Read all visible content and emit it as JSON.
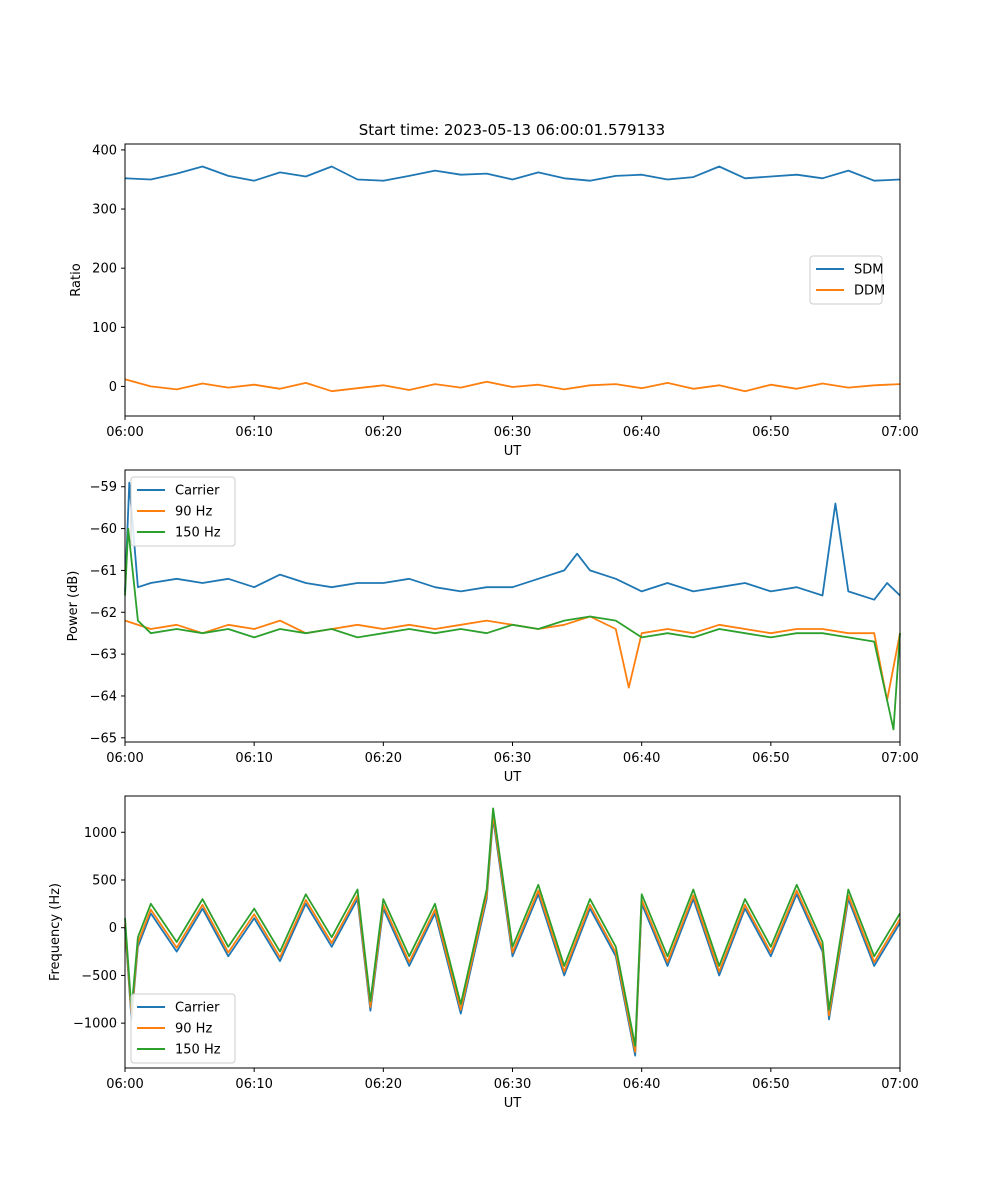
{
  "figure": {
    "title": "Start time: 2023-05-13 06:00:01.579133"
  },
  "chart_data": [
    {
      "type": "line",
      "xlabel": "UT",
      "ylabel": "Ratio",
      "xlim": [
        "06:00",
        "07:00"
      ],
      "ylim": [
        -50,
        410
      ],
      "xticks": [
        "06:00",
        "06:10",
        "06:20",
        "06:30",
        "06:40",
        "06:50",
        "07:00"
      ],
      "yticks": [
        0,
        100,
        200,
        300,
        400
      ],
      "legend_position": "center-right",
      "series": [
        {
          "name": "SDM",
          "color": "#1f77b4",
          "x": [
            "06:00",
            "06:02",
            "06:04",
            "06:06",
            "06:08",
            "06:10",
            "06:12",
            "06:14",
            "06:16",
            "06:18",
            "06:20",
            "06:22",
            "06:24",
            "06:26",
            "06:28",
            "06:30",
            "06:32",
            "06:34",
            "06:36",
            "06:38",
            "06:40",
            "06:42",
            "06:44",
            "06:46",
            "06:48",
            "06:50",
            "06:52",
            "06:54",
            "06:56",
            "06:58",
            "07:00"
          ],
          "values": [
            352,
            350,
            360,
            372,
            356,
            348,
            362,
            355,
            372,
            350,
            348,
            356,
            365,
            358,
            360,
            350,
            362,
            352,
            348,
            356,
            358,
            350,
            354,
            372,
            352,
            355,
            358,
            352,
            365,
            348,
            350
          ]
        },
        {
          "name": "DDM",
          "color": "#ff7f0e",
          "x": [
            "06:00",
            "06:02",
            "06:04",
            "06:06",
            "06:08",
            "06:10",
            "06:12",
            "06:14",
            "06:16",
            "06:18",
            "06:20",
            "06:22",
            "06:24",
            "06:26",
            "06:28",
            "06:30",
            "06:32",
            "06:34",
            "06:36",
            "06:38",
            "06:40",
            "06:42",
            "06:44",
            "06:46",
            "06:48",
            "06:50",
            "06:52",
            "06:54",
            "06:56",
            "06:58",
            "07:00"
          ],
          "values": [
            12,
            0,
            -5,
            5,
            -2,
            3,
            -4,
            6,
            -8,
            -3,
            2,
            -6,
            4,
            -2,
            8,
            -1,
            3,
            -5,
            2,
            4,
            -3,
            6,
            -4,
            2,
            -8,
            3,
            -4,
            5,
            -2,
            2,
            4
          ]
        }
      ]
    },
    {
      "type": "line",
      "xlabel": "UT",
      "ylabel": "Power (dB)",
      "xlim": [
        "06:00",
        "07:00"
      ],
      "ylim": [
        -65.1,
        -58.6
      ],
      "xticks": [
        "06:00",
        "06:10",
        "06:20",
        "06:30",
        "06:40",
        "06:50",
        "07:00"
      ],
      "yticks": [
        -65,
        -64,
        -63,
        -62,
        -61,
        -60,
        -59
      ],
      "legend_position": "top-left",
      "series": [
        {
          "name": "Carrier",
          "color": "#1f77b4",
          "x": [
            "06:00",
            "06:00:20",
            "06:01",
            "06:02",
            "06:04",
            "06:06",
            "06:08",
            "06:10",
            "06:12",
            "06:14",
            "06:16",
            "06:18",
            "06:20",
            "06:22",
            "06:24",
            "06:26",
            "06:28",
            "06:30",
            "06:32",
            "06:34",
            "06:35",
            "06:36",
            "06:38",
            "06:40",
            "06:42",
            "06:44",
            "06:46",
            "06:48",
            "06:50",
            "06:52",
            "06:54",
            "06:55",
            "06:56",
            "06:58",
            "06:59",
            "07:00"
          ],
          "values": [
            -61.5,
            -58.9,
            -61.4,
            -61.3,
            -61.2,
            -61.3,
            -61.2,
            -61.4,
            -61.1,
            -61.3,
            -61.4,
            -61.3,
            -61.3,
            -61.2,
            -61.4,
            -61.5,
            -61.4,
            -61.4,
            -61.2,
            -61.0,
            -60.6,
            -61.0,
            -61.2,
            -61.5,
            -61.3,
            -61.5,
            -61.4,
            -61.3,
            -61.5,
            -61.4,
            -61.6,
            -59.4,
            -61.5,
            -61.7,
            -61.3,
            -61.6
          ]
        },
        {
          "name": "90 Hz",
          "color": "#ff7f0e",
          "x": [
            "06:00",
            "06:02",
            "06:04",
            "06:06",
            "06:08",
            "06:10",
            "06:12",
            "06:14",
            "06:16",
            "06:18",
            "06:20",
            "06:22",
            "06:24",
            "06:26",
            "06:28",
            "06:30",
            "06:32",
            "06:34",
            "06:36",
            "06:38",
            "06:39",
            "06:40",
            "06:42",
            "06:44",
            "06:46",
            "06:48",
            "06:50",
            "06:52",
            "06:54",
            "06:56",
            "06:58",
            "06:59",
            "07:00"
          ],
          "values": [
            -62.2,
            -62.4,
            -62.3,
            -62.5,
            -62.3,
            -62.4,
            -62.2,
            -62.5,
            -62.4,
            -62.3,
            -62.4,
            -62.3,
            -62.4,
            -62.3,
            -62.2,
            -62.3,
            -62.4,
            -62.3,
            -62.1,
            -62.4,
            -63.8,
            -62.5,
            -62.4,
            -62.5,
            -62.3,
            -62.4,
            -62.5,
            -62.4,
            -62.4,
            -62.5,
            -62.5,
            -64.1,
            -62.5
          ]
        },
        {
          "name": "150 Hz",
          "color": "#2ca02c",
          "x": [
            "06:00",
            "06:00:15",
            "06:01",
            "06:02",
            "06:04",
            "06:06",
            "06:08",
            "06:10",
            "06:12",
            "06:14",
            "06:16",
            "06:18",
            "06:20",
            "06:22",
            "06:24",
            "06:26",
            "06:28",
            "06:30",
            "06:32",
            "06:34",
            "06:36",
            "06:38",
            "06:40",
            "06:42",
            "06:44",
            "06:46",
            "06:48",
            "06:50",
            "06:52",
            "06:54",
            "06:56",
            "06:58",
            "06:59:30",
            "07:00"
          ],
          "values": [
            -61.6,
            -60.0,
            -62.2,
            -62.5,
            -62.4,
            -62.5,
            -62.4,
            -62.6,
            -62.4,
            -62.5,
            -62.4,
            -62.6,
            -62.5,
            -62.4,
            -62.5,
            -62.4,
            -62.5,
            -62.3,
            -62.4,
            -62.2,
            -62.1,
            -62.2,
            -62.6,
            -62.5,
            -62.6,
            -62.4,
            -62.5,
            -62.6,
            -62.5,
            -62.5,
            -62.6,
            -62.7,
            -64.8,
            -62.5
          ]
        }
      ]
    },
    {
      "type": "line",
      "xlabel": "UT",
      "ylabel": "Frequency (Hz)",
      "xlim": [
        "06:00",
        "07:00"
      ],
      "ylim": [
        -1470,
        1380
      ],
      "xticks": [
        "06:00",
        "06:10",
        "06:20",
        "06:30",
        "06:40",
        "06:50",
        "07:00"
      ],
      "yticks": [
        -1000,
        -500,
        0,
        500,
        1000
      ],
      "legend_position": "bottom-left",
      "series": [
        {
          "name": "Carrier",
          "color": "#1f77b4",
          "x": [
            "06:00",
            "06:00:30",
            "06:01",
            "06:02",
            "06:04",
            "06:06",
            "06:08",
            "06:10",
            "06:12",
            "06:14",
            "06:16",
            "06:18",
            "06:19",
            "06:20",
            "06:22",
            "06:24",
            "06:26",
            "06:28",
            "06:28:30",
            "06:30",
            "06:32",
            "06:34",
            "06:36",
            "06:38",
            "06:39:30",
            "06:40",
            "06:42",
            "06:44",
            "06:46",
            "06:48",
            "06:50",
            "06:52",
            "06:54",
            "06:54:30",
            "06:56",
            "06:58",
            "07:00"
          ],
          "values": [
            0,
            -960,
            -200,
            150,
            -250,
            200,
            -300,
            100,
            -350,
            250,
            -200,
            300,
            -870,
            200,
            -400,
            150,
            -900,
            300,
            1150,
            -300,
            350,
            -500,
            200,
            -300,
            -1340,
            250,
            -400,
            300,
            -500,
            200,
            -300,
            350,
            -250,
            -960,
            300,
            -400,
            50
          ]
        },
        {
          "name": "90 Hz",
          "color": "#ff7f0e",
          "x": [
            "06:00",
            "06:00:30",
            "06:01",
            "06:02",
            "06:04",
            "06:06",
            "06:08",
            "06:10",
            "06:12",
            "06:14",
            "06:16",
            "06:18",
            "06:19",
            "06:20",
            "06:22",
            "06:24",
            "06:26",
            "06:28",
            "06:28:30",
            "06:30",
            "06:32",
            "06:34",
            "06:36",
            "06:38",
            "06:39:30",
            "06:40",
            "06:42",
            "06:44",
            "06:46",
            "06:48",
            "06:50",
            "06:52",
            "06:54",
            "06:54:30",
            "06:56",
            "06:58",
            "07:00"
          ],
          "values": [
            40,
            -920,
            -160,
            190,
            -210,
            240,
            -260,
            140,
            -310,
            290,
            -160,
            340,
            -830,
            240,
            -360,
            190,
            -860,
            340,
            1190,
            -260,
            390,
            -460,
            240,
            -260,
            -1300,
            290,
            -360,
            340,
            -460,
            240,
            -260,
            390,
            -210,
            -920,
            340,
            -360,
            90
          ]
        },
        {
          "name": "150 Hz",
          "color": "#2ca02c",
          "x": [
            "06:00",
            "06:00:30",
            "06:01",
            "06:02",
            "06:04",
            "06:06",
            "06:08",
            "06:10",
            "06:12",
            "06:14",
            "06:16",
            "06:18",
            "06:19",
            "06:20",
            "06:22",
            "06:24",
            "06:26",
            "06:28",
            "06:28:30",
            "06:30",
            "06:32",
            "06:34",
            "06:36",
            "06:38",
            "06:39:30",
            "06:40",
            "06:42",
            "06:44",
            "06:46",
            "06:48",
            "06:50",
            "06:52",
            "06:54",
            "06:54:30",
            "06:56",
            "06:58",
            "07:00"
          ],
          "values": [
            100,
            -860,
            -100,
            250,
            -150,
            300,
            -200,
            200,
            -250,
            350,
            -100,
            400,
            -770,
            300,
            -300,
            250,
            -800,
            400,
            1250,
            -200,
            450,
            -400,
            300,
            -200,
            -1240,
            350,
            -300,
            400,
            -400,
            300,
            -200,
            450,
            -150,
            -860,
            400,
            -300,
            150
          ]
        }
      ]
    }
  ]
}
